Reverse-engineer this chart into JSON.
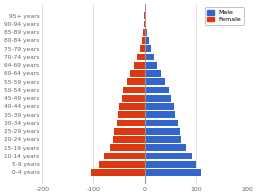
{
  "age_groups": [
    "0-4 years",
    "5-9 years",
    "10-14 years",
    "15-19 years",
    "20-24 years",
    "25-29 years",
    "30-34 years",
    "35-39 years",
    "40-44 years",
    "45-49 years",
    "50-54 years",
    "55-59 years",
    "60-64 years",
    "64-69 years",
    "70-74 years",
    "75-79 years",
    "80-84 years",
    "85-89 years",
    "90-94 years",
    "95+ years"
  ],
  "male": [
    110,
    100,
    92,
    80,
    72,
    70,
    65,
    60,
    58,
    52,
    48,
    40,
    32,
    25,
    18,
    12,
    8,
    5,
    3,
    2
  ],
  "female": [
    -105,
    -90,
    -80,
    -68,
    -62,
    -60,
    -55,
    -52,
    -50,
    -45,
    -42,
    -35,
    -28,
    -20,
    -15,
    -10,
    -6,
    -4,
    -2,
    -1
  ],
  "male_color": "#3366cc",
  "female_color": "#dc3912",
  "xlim": [
    -200,
    200
  ],
  "xticks": [
    -200,
    -100,
    0,
    100,
    200
  ],
  "background_color": "#ffffff",
  "grid_color": "#cccccc",
  "legend_male": "Male",
  "legend_female": "Female"
}
